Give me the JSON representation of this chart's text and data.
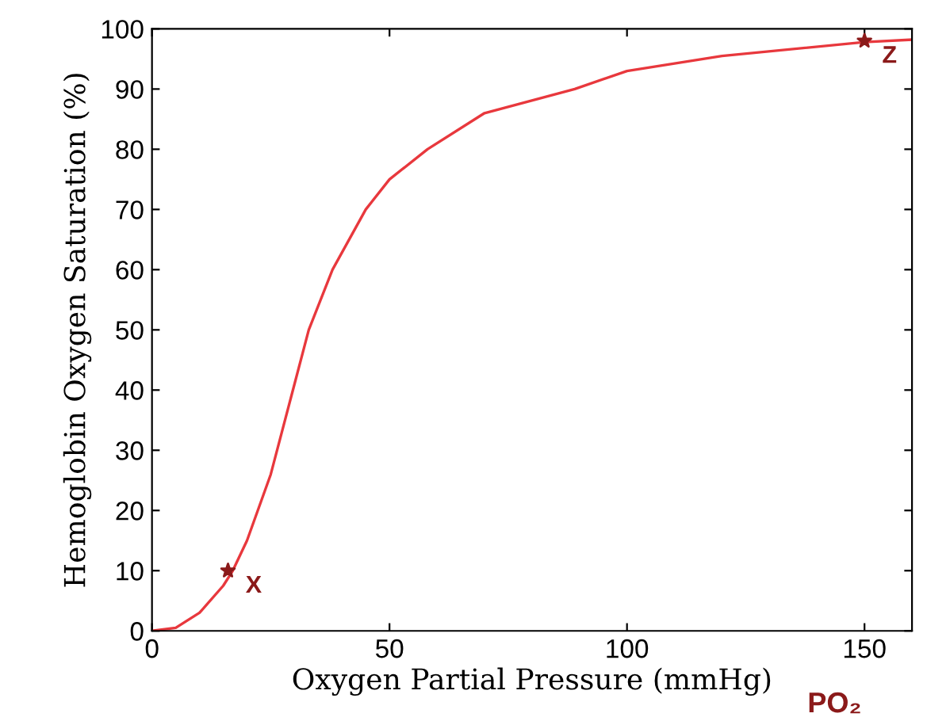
{
  "chart_data": {
    "type": "line",
    "xlabel": "Oxygen Partial Pressure (mmHg)",
    "ylabel": "Hemoglobin Oxygen Saturation (%)",
    "xlim": [
      0,
      160
    ],
    "ylim": [
      0,
      100
    ],
    "xticks": [
      0,
      50,
      100,
      150
    ],
    "yticks": [
      0,
      10,
      20,
      30,
      40,
      50,
      60,
      70,
      80,
      90,
      100
    ],
    "grid": false,
    "legend": false,
    "series": [
      {
        "color": "#e8383d",
        "x": [
          0,
          5,
          10,
          15,
          17,
          20,
          25,
          30,
          33,
          38,
          45,
          50,
          58,
          70,
          89,
          100,
          120,
          150,
          160
        ],
        "values": [
          0,
          0.5,
          3,
          7.5,
          10,
          15,
          26,
          41,
          50,
          60,
          70,
          75,
          80,
          86,
          90,
          93,
          95.5,
          97.8,
          98.2
        ]
      },
      {
        "type": "scatter",
        "marker": "star",
        "color": "#8b1a1a",
        "x": [
          16,
          150
        ],
        "values": [
          10,
          98
        ]
      }
    ],
    "annotations": [
      {
        "text": "X",
        "x": 16,
        "y": 10
      },
      {
        "text": "Z",
        "x": 150,
        "y": 98
      },
      "PO₂"
    ]
  }
}
